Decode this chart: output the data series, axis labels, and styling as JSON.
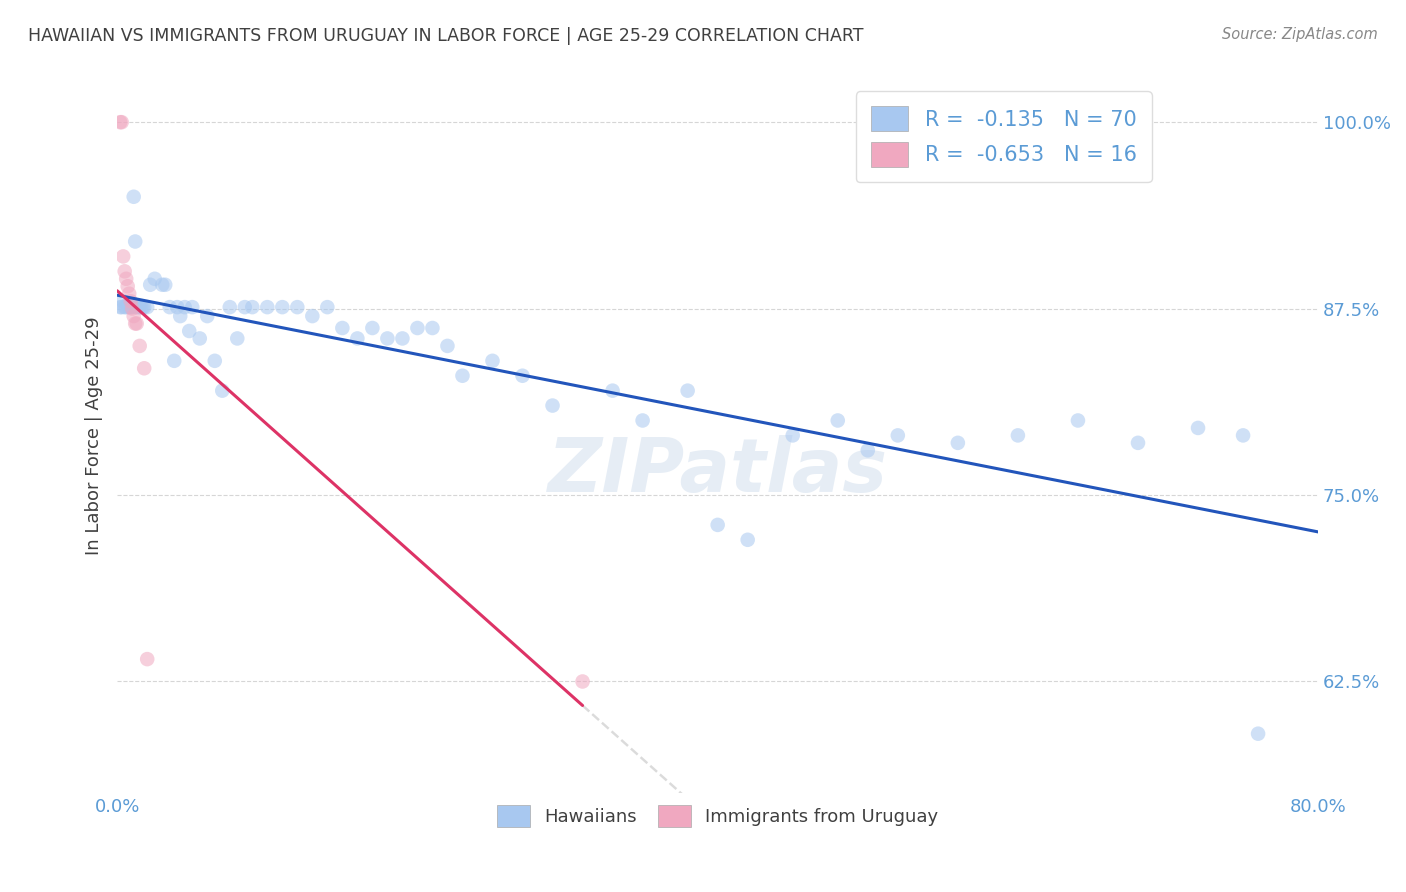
{
  "title": "HAWAIIAN VS IMMIGRANTS FROM URUGUAY IN LABOR FORCE | AGE 25-29 CORRELATION CHART",
  "source": "Source: ZipAtlas.com",
  "ylabel": "In Labor Force | Age 25-29",
  "xlim": [
    0.0,
    0.8
  ],
  "ylim": [
    0.55,
    1.03
  ],
  "x_ticks": [
    0.0,
    0.1,
    0.2,
    0.3,
    0.4,
    0.5,
    0.6,
    0.7,
    0.8
  ],
  "x_tick_labels": [
    "0.0%",
    "",
    "",
    "",
    "",
    "",
    "",
    "",
    "80.0%"
  ],
  "y_ticks": [
    0.625,
    0.75,
    0.875,
    1.0
  ],
  "y_tick_labels": [
    "62.5%",
    "75.0%",
    "87.5%",
    "100.0%"
  ],
  "hawaiian_color": "#a8c8f0",
  "hawaii_line_color": "#2255bb",
  "uruguay_color": "#f0a8c0",
  "uruguay_line_color": "#dd3366",
  "hawaii_R": -0.135,
  "hawaii_N": 70,
  "uruguay_R": -0.653,
  "uruguay_N": 16,
  "hawaiian_x": [
    0.002,
    0.003,
    0.004,
    0.005,
    0.006,
    0.007,
    0.008,
    0.009,
    0.01,
    0.011,
    0.012,
    0.013,
    0.014,
    0.015,
    0.016,
    0.017,
    0.018,
    0.02,
    0.022,
    0.025,
    0.03,
    0.032,
    0.035,
    0.038,
    0.04,
    0.042,
    0.045,
    0.048,
    0.05,
    0.055,
    0.06,
    0.065,
    0.07,
    0.075,
    0.08,
    0.085,
    0.09,
    0.1,
    0.11,
    0.12,
    0.13,
    0.14,
    0.15,
    0.16,
    0.17,
    0.18,
    0.19,
    0.2,
    0.21,
    0.22,
    0.23,
    0.25,
    0.27,
    0.29,
    0.33,
    0.35,
    0.38,
    0.4,
    0.42,
    0.45,
    0.48,
    0.5,
    0.52,
    0.56,
    0.6,
    0.64,
    0.68,
    0.72,
    0.75,
    0.76
  ],
  "hawaiian_y": [
    0.876,
    0.876,
    0.88,
    0.876,
    0.876,
    0.878,
    0.876,
    0.876,
    0.876,
    0.95,
    0.92,
    0.876,
    0.876,
    0.876,
    0.876,
    0.876,
    0.876,
    0.876,
    0.891,
    0.895,
    0.891,
    0.891,
    0.876,
    0.84,
    0.876,
    0.87,
    0.876,
    0.86,
    0.876,
    0.855,
    0.87,
    0.84,
    0.82,
    0.876,
    0.855,
    0.876,
    0.876,
    0.876,
    0.876,
    0.876,
    0.87,
    0.876,
    0.862,
    0.855,
    0.862,
    0.855,
    0.855,
    0.862,
    0.862,
    0.85,
    0.83,
    0.84,
    0.83,
    0.81,
    0.82,
    0.8,
    0.82,
    0.73,
    0.72,
    0.79,
    0.8,
    0.78,
    0.79,
    0.785,
    0.79,
    0.8,
    0.785,
    0.795,
    0.79,
    0.59
  ],
  "uruguay_x": [
    0.002,
    0.003,
    0.004,
    0.005,
    0.006,
    0.007,
    0.008,
    0.009,
    0.01,
    0.011,
    0.012,
    0.013,
    0.015,
    0.018,
    0.02,
    0.31
  ],
  "uruguay_y": [
    1.0,
    1.0,
    0.91,
    0.9,
    0.895,
    0.89,
    0.885,
    0.88,
    0.875,
    0.87,
    0.865,
    0.865,
    0.85,
    0.835,
    0.64,
    0.625
  ],
  "watermark": "ZIPatlas",
  "background_color": "#ffffff",
  "grid_color": "#cccccc",
  "title_color": "#404040",
  "axis_label_color": "#404040",
  "tick_label_color": "#5b9bd5",
  "legend_fontsize": 15,
  "scatter_size": 110,
  "scatter_alpha": 0.55,
  "line_width": 2.2
}
